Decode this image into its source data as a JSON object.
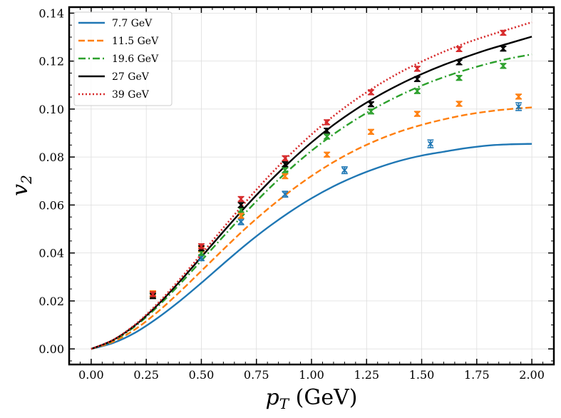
{
  "chart_data": {
    "type": "line",
    "title": "",
    "xlabel": "p_T (GeV)",
    "xlabel_main": "p",
    "xlabel_sub": "T",
    "xlabel_unit": " (GeV)",
    "ylabel": "v_2",
    "ylabel_main": "v",
    "ylabel_sub": "2",
    "xlim": [
      -0.1,
      2.1
    ],
    "ylim": [
      -0.0065,
      0.1425
    ],
    "grid": true,
    "legend_position": "top-left",
    "x_ticks": [
      "0.00",
      "0.25",
      "0.50",
      "0.75",
      "1.00",
      "1.25",
      "1.50",
      "1.75",
      "2.00"
    ],
    "y_ticks": [
      "0.00",
      "0.02",
      "0.04",
      "0.06",
      "0.08",
      "0.10",
      "0.12",
      "0.14"
    ],
    "x_tick_values": [
      0,
      0.25,
      0.5,
      0.75,
      1.0,
      1.25,
      1.5,
      1.75,
      2.0
    ],
    "y_tick_values": [
      0,
      0.02,
      0.04,
      0.06,
      0.08,
      0.1,
      0.12,
      0.14
    ],
    "series": [
      {
        "name": "7.7 GeV",
        "color": "#1f77b4",
        "dash": "solid",
        "curve": {
          "x": [
            0,
            0.1,
            0.2,
            0.3,
            0.4,
            0.5,
            0.6,
            0.7,
            0.8,
            0.9,
            1.0,
            1.1,
            1.2,
            1.3,
            1.4,
            1.5,
            1.6,
            1.7,
            1.8,
            1.9,
            2.0
          ],
          "y": [
            0,
            0.0025,
            0.0068,
            0.0128,
            0.0198,
            0.0275,
            0.0355,
            0.0433,
            0.0505,
            0.057,
            0.0628,
            0.0678,
            0.072,
            0.0755,
            0.0784,
            0.0806,
            0.0822,
            0.0837,
            0.0848,
            0.0853,
            0.0855
          ]
        },
        "points": [
          {
            "x": 0.5,
            "y": 0.038,
            "err": 0.0012
          },
          {
            "x": 0.68,
            "y": 0.053,
            "err": 0.0012
          },
          {
            "x": 0.88,
            "y": 0.0645,
            "err": 0.0012
          },
          {
            "x": 1.15,
            "y": 0.0745,
            "err": 0.0014
          },
          {
            "x": 1.54,
            "y": 0.0855,
            "err": 0.0016
          },
          {
            "x": 1.94,
            "y": 0.101,
            "err": 0.0016
          }
        ]
      },
      {
        "name": "11.5 GeV",
        "color": "#ff7f0e",
        "dash": "dashed",
        "curve": {
          "x": [
            0,
            0.1,
            0.2,
            0.3,
            0.4,
            0.5,
            0.6,
            0.7,
            0.8,
            0.9,
            1.0,
            1.1,
            1.2,
            1.3,
            1.4,
            1.5,
            1.6,
            1.7,
            1.8,
            1.9,
            2.0
          ],
          "y": [
            0,
            0.003,
            0.0082,
            0.0153,
            0.0236,
            0.0325,
            0.0415,
            0.0502,
            0.0582,
            0.0655,
            0.0721,
            0.0779,
            0.0829,
            0.0871,
            0.0906,
            0.0934,
            0.0957,
            0.0976,
            0.099,
            0.1,
            0.1007
          ]
        },
        "points": [
          {
            "x": 0.28,
            "y": 0.0232,
            "err": 0.001
          },
          {
            "x": 0.5,
            "y": 0.0415,
            "err": 0.001
          },
          {
            "x": 0.68,
            "y": 0.0555,
            "err": 0.001
          },
          {
            "x": 0.88,
            "y": 0.072,
            "err": 0.001
          },
          {
            "x": 1.07,
            "y": 0.081,
            "err": 0.001
          },
          {
            "x": 1.27,
            "y": 0.0905,
            "err": 0.001
          },
          {
            "x": 1.48,
            "y": 0.098,
            "err": 0.001
          },
          {
            "x": 1.67,
            "y": 0.1022,
            "err": 0.001
          },
          {
            "x": 1.94,
            "y": 0.1052,
            "err": 0.001
          }
        ]
      },
      {
        "name": "19.6 GeV",
        "color": "#2ca02c",
        "dash": "dashdot",
        "curve": {
          "x": [
            0,
            0.1,
            0.2,
            0.3,
            0.4,
            0.5,
            0.6,
            0.7,
            0.8,
            0.9,
            1.0,
            1.1,
            1.2,
            1.3,
            1.4,
            1.5,
            1.6,
            1.7,
            1.8,
            1.9,
            2.0
          ],
          "y": [
            0,
            0.0035,
            0.0095,
            0.0175,
            0.0268,
            0.0368,
            0.0469,
            0.0568,
            0.0662,
            0.0748,
            0.0826,
            0.0895,
            0.0956,
            0.101,
            0.1057,
            0.1098,
            0.1133,
            0.1163,
            0.1189,
            0.1211,
            0.1228
          ]
        },
        "points": [
          {
            "x": 0.28,
            "y": 0.0225,
            "err": 0.001
          },
          {
            "x": 0.5,
            "y": 0.04,
            "err": 0.001
          },
          {
            "x": 0.68,
            "y": 0.058,
            "err": 0.001
          },
          {
            "x": 0.88,
            "y": 0.0745,
            "err": 0.001
          },
          {
            "x": 1.07,
            "y": 0.0885,
            "err": 0.001
          },
          {
            "x": 1.27,
            "y": 0.099,
            "err": 0.001
          },
          {
            "x": 1.48,
            "y": 0.1075,
            "err": 0.001
          },
          {
            "x": 1.67,
            "y": 0.113,
            "err": 0.001
          },
          {
            "x": 1.87,
            "y": 0.118,
            "err": 0.001
          }
        ]
      },
      {
        "name": "27 GeV",
        "color": "#000000",
        "dash": "solid",
        "curve": {
          "x": [
            0,
            0.1,
            0.2,
            0.3,
            0.4,
            0.5,
            0.6,
            0.7,
            0.8,
            0.9,
            1.0,
            1.1,
            1.2,
            1.3,
            1.4,
            1.5,
            1.6,
            1.7,
            1.8,
            1.9,
            2.0
          ],
          "y": [
            0,
            0.0037,
            0.0099,
            0.0182,
            0.0279,
            0.0383,
            0.0489,
            0.0592,
            0.0689,
            0.0779,
            0.0861,
            0.0934,
            0.0998,
            0.1054,
            0.1103,
            0.1146,
            0.1184,
            0.1217,
            0.1248,
            0.1275,
            0.1302
          ]
        },
        "points": [
          {
            "x": 0.28,
            "y": 0.022,
            "err": 0.001
          },
          {
            "x": 0.5,
            "y": 0.042,
            "err": 0.001
          },
          {
            "x": 0.68,
            "y": 0.06,
            "err": 0.001
          },
          {
            "x": 0.88,
            "y": 0.077,
            "err": 0.001
          },
          {
            "x": 1.07,
            "y": 0.091,
            "err": 0.001
          },
          {
            "x": 1.27,
            "y": 0.102,
            "err": 0.001
          },
          {
            "x": 1.48,
            "y": 0.1125,
            "err": 0.001
          },
          {
            "x": 1.67,
            "y": 0.1195,
            "err": 0.001
          },
          {
            "x": 1.87,
            "y": 0.1252,
            "err": 0.001
          }
        ]
      },
      {
        "name": "39 GeV",
        "color": "#d62728",
        "dash": "dotted",
        "curve": {
          "x": [
            0,
            0.1,
            0.2,
            0.3,
            0.4,
            0.5,
            0.6,
            0.7,
            0.8,
            0.9,
            1.0,
            1.1,
            1.2,
            1.3,
            1.4,
            1.5,
            1.6,
            1.7,
            1.8,
            1.9,
            2.0
          ],
          "y": [
            0,
            0.0038,
            0.0102,
            0.0188,
            0.0288,
            0.0395,
            0.0505,
            0.0612,
            0.0714,
            0.0808,
            0.0894,
            0.0971,
            0.1039,
            0.1099,
            0.1152,
            0.1198,
            0.1239,
            0.1275,
            0.1306,
            0.1334,
            0.1362
          ]
        },
        "points": [
          {
            "x": 0.28,
            "y": 0.0228,
            "err": 0.001
          },
          {
            "x": 0.5,
            "y": 0.0428,
            "err": 0.001
          },
          {
            "x": 0.68,
            "y": 0.0625,
            "err": 0.001
          },
          {
            "x": 0.88,
            "y": 0.0795,
            "err": 0.001
          },
          {
            "x": 1.07,
            "y": 0.0945,
            "err": 0.001
          },
          {
            "x": 1.27,
            "y": 0.107,
            "err": 0.001
          },
          {
            "x": 1.48,
            "y": 0.1168,
            "err": 0.001
          },
          {
            "x": 1.67,
            "y": 0.125,
            "err": 0.001
          },
          {
            "x": 1.87,
            "y": 0.1318,
            "err": 0.001
          }
        ]
      }
    ]
  }
}
